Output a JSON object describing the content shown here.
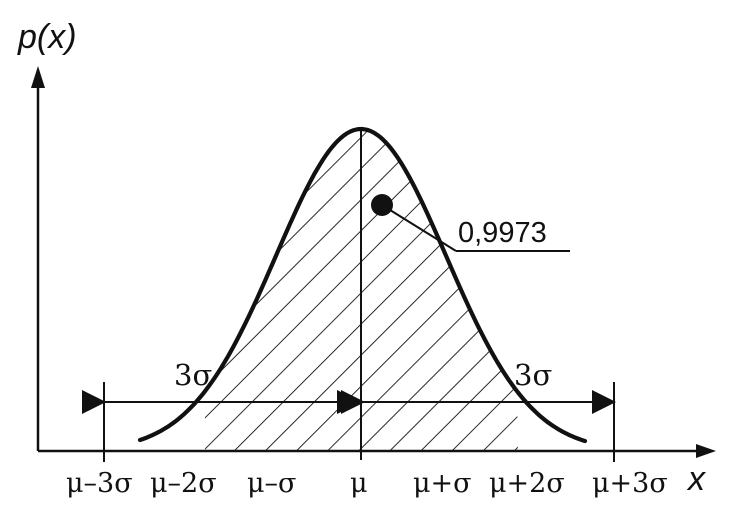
{
  "diagram": {
    "y_axis_label": "p(x)",
    "x_axis_label": "x",
    "probability_label": "0,9973",
    "left_span_label": "3σ",
    "right_span_label": "3σ",
    "tick_labels": [
      "μ–3σ",
      "μ–2σ",
      "μ–σ",
      "μ",
      "μ+σ",
      "μ+2σ",
      "μ+3σ"
    ],
    "line_color": "#111111",
    "background_color": "#ffffff"
  }
}
